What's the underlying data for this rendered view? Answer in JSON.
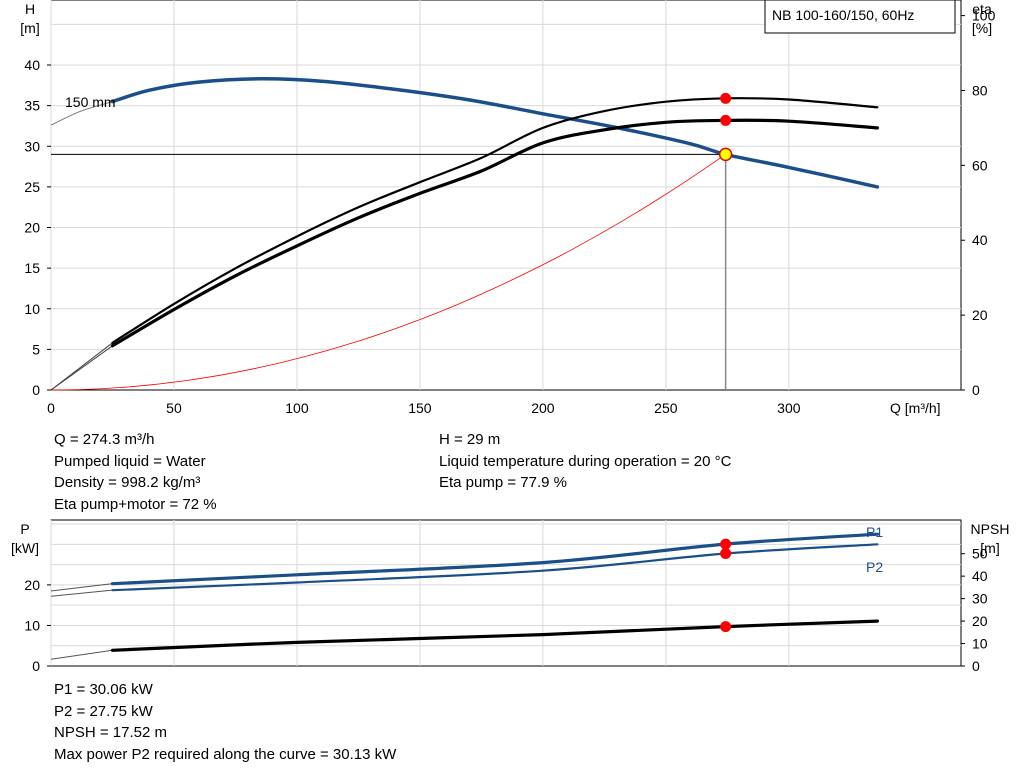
{
  "chart_data": [
    {
      "type": "line",
      "title": "NB 100-160/150, 60Hz",
      "xlabel": "Q [m³/h]",
      "ylabel_left": [
        "H",
        "[m]"
      ],
      "ylabel_right": [
        "eta",
        "[%]"
      ],
      "xlim": [
        0,
        370
      ],
      "ylim_left": [
        0,
        48
      ],
      "ylim_right": [
        0,
        100
      ],
      "x_ticks": [
        "0",
        "50",
        "100",
        "150",
        "200",
        "250",
        "300"
      ],
      "y_ticks_left": [
        "0",
        "5",
        "10",
        "15",
        "20",
        "25",
        "30",
        "35",
        "40"
      ],
      "y_ticks_right": [
        "0",
        "20",
        "40",
        "60",
        "80",
        "100"
      ],
      "grid": true,
      "curve_label": "150 mm",
      "duty_point": {
        "q": 274.3,
        "h": 29
      },
      "series": [
        {
          "name": "",
          "axis": "H",
          "color": "#1b4f8a",
          "points": [
            [
              25,
              35.5
            ],
            [
              40,
              36.9
            ],
            [
              60,
              37.9
            ],
            [
              85,
              38.3
            ],
            [
              110,
              38.0
            ],
            [
              140,
              37.0
            ],
            [
              170,
              35.7
            ],
            [
              200,
              34.0
            ],
            [
              230,
              32.3
            ],
            [
              260,
              30.3
            ],
            [
              274.3,
              29.0
            ],
            [
              300,
              27.4
            ],
            [
              336,
              25.0
            ]
          ]
        },
        {
          "name": "",
          "axis": "eta",
          "color": "#000000",
          "points": [
            [
              25,
              12.6
            ],
            [
              50,
              23.0
            ],
            [
              75,
              32.5
            ],
            [
              100,
              41.0
            ],
            [
              125,
              48.8
            ],
            [
              150,
              55.5
            ],
            [
              175,
              62.0
            ],
            [
              200,
              70.0
            ],
            [
              225,
              74.5
            ],
            [
              250,
              77.0
            ],
            [
              274.3,
              77.9
            ],
            [
              300,
              77.6
            ],
            [
              336,
              75.5
            ]
          ]
        },
        {
          "name": "",
          "axis": "eta",
          "color": "#000000",
          "points": [
            [
              25,
              11.8
            ],
            [
              50,
              21.5
            ],
            [
              75,
              30.5
            ],
            [
              100,
              38.5
            ],
            [
              125,
              46.0
            ],
            [
              150,
              52.5
            ],
            [
              175,
              58.5
            ],
            [
              200,
              66.0
            ],
            [
              225,
              69.5
            ],
            [
              250,
              71.5
            ],
            [
              274.3,
              72.0
            ],
            [
              300,
              71.8
            ],
            [
              336,
              70.0
            ]
          ]
        }
      ],
      "system_curve": {
        "color": "#ff0000",
        "h_at_duty": 29
      }
    },
    {
      "type": "line",
      "ylabel_left": [
        "P",
        "[kW]"
      ],
      "ylabel_right": [
        "NPSH",
        "[m]"
      ],
      "xlim": [
        0,
        370
      ],
      "ylim_left": [
        0,
        36
      ],
      "ylim_right": [
        0,
        65
      ],
      "y_ticks_left": [
        "0",
        "10",
        "20"
      ],
      "y_ticks_right": [
        "0",
        "10",
        "20",
        "30",
        "40",
        "50"
      ],
      "grid": true,
      "series": [
        {
          "name": "P1",
          "axis": "P",
          "color": "#1b4f8a",
          "points": [
            [
              25,
              20.3
            ],
            [
              100,
              22.5
            ],
            [
              200,
              25.5
            ],
            [
              274.3,
              30.06
            ],
            [
              336,
              32.5
            ]
          ]
        },
        {
          "name": "P2",
          "axis": "P",
          "color": "#1b4f8a",
          "points": [
            [
              25,
              18.7
            ],
            [
              100,
              20.6
            ],
            [
              200,
              23.5
            ],
            [
              274.3,
              27.75
            ],
            [
              336,
              30.0
            ]
          ]
        },
        {
          "name": "",
          "axis": "NPSH",
          "color": "#000000",
          "points": [
            [
              25,
              7.0
            ],
            [
              100,
              10.5
            ],
            [
              200,
              14.0
            ],
            [
              274.3,
              17.52
            ],
            [
              336,
              20.0
            ]
          ]
        }
      ]
    }
  ],
  "info_top_left": [
    "Q = 274.3 m³/h",
    "Pumped liquid = Water",
    "Density = 998.2 kg/m³",
    "Eta pump+motor = 72 %"
  ],
  "info_top_right": [
    "H = 29 m",
    "Liquid temperature during operation = 20 °C",
    "Eta pump = 77.9 %"
  ],
  "info_bottom": [
    "P1 = 30.06 kW",
    "P2 = 27.75 kW",
    "NPSH = 17.52 m",
    "Max power P2 required along the curve = 30.13 kW"
  ]
}
